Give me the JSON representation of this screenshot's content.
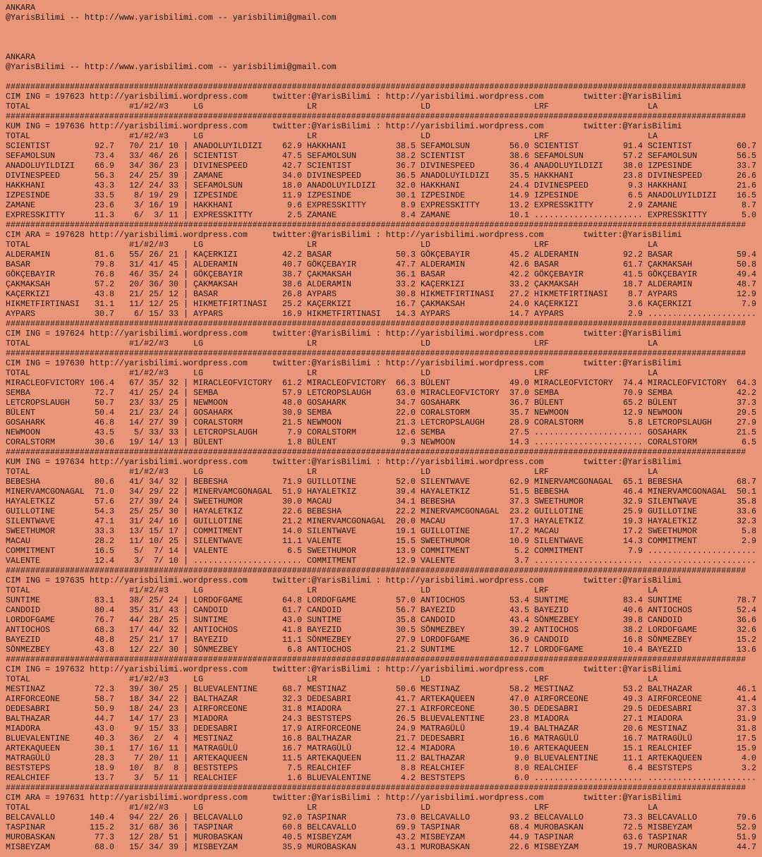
{
  "intro": [
    {
      "city": "ANKARA",
      "contact": "@YarisBilimi -- http://www.yarisbilimi.com -- yarisbilimi@gmail.com"
    },
    {
      "city": "ANKARA",
      "contact": "@YarisBilimi -- http://www.yarisbilimi.com -- yarisbilimi@gmail.com"
    }
  ],
  "separator": "######################################################################################################################################################",
  "tagline": "http://yarisbilimi.wordpress.com     twitter:@YarisBilimi : http://yarisbilimi.wordpress.com        twitter:@YarisBilimi",
  "columns": {
    "total": "TOTAL",
    "ranks": "#1/#2/#3",
    "lg": "LG",
    "lr": "LR",
    "ld": "LD",
    "lrf": "LRF",
    "la": "LA"
  },
  "sections": [
    {
      "title": "CIM ING = 197623",
      "rows": []
    },
    {
      "title": "KUM ING = 197636",
      "rows": [
        [
          "SCIENTIST",
          "92.7",
          "70/ 21/ 10",
          "ANADOLUYILDIZI",
          "62.9",
          "HAKKHANI",
          "38.5",
          "SEFAMOLSUN",
          "56.0",
          "SCIENTIST",
          "91.4",
          "SCIENTIST",
          "60.7"
        ],
        [
          "SEFAMOLSUN",
          "73.4",
          "33/ 46/ 26",
          "SCIENTIST",
          "47.5",
          "SEFAMOLSUN",
          "38.2",
          "SCIENTIST",
          "38.6",
          "SEFAMOLSUN",
          "57.2",
          "SEFAMOLSUN",
          "56.5"
        ],
        [
          "ANADOLUYILDIZI",
          "66.9",
          "34/ 36/ 23",
          "DIVINESPEED",
          "42.7",
          "SCIENTIST",
          "36.7",
          "DIVINESPEED",
          "36.4",
          "ANADOLUYILDIZI",
          "38.0",
          "IZPESINDE",
          "33.7"
        ],
        [
          "DIVINESPEED",
          "56.3",
          "24/ 25/ 39",
          "ZAMANE",
          "34.0",
          "DIVINESPEED",
          "36.5",
          "ANADOLUYILDIZI",
          "35.5",
          "HAKKHANI",
          "23.8",
          "DIVINESPEED",
          "26.6"
        ],
        [
          "HAKKHANI",
          "43.3",
          "12/ 24/ 33",
          "SEFAMOLSUN",
          "18.0",
          "ANADOLUYILDIZI",
          "32.0",
          "HAKKHANI",
          "24.4",
          "DIVINESPEED",
          "9.3",
          "HAKKHANI",
          "21.6"
        ],
        [
          "IZPESINDE",
          "33.5",
          "8/ 19/ 29",
          "IZPESINDE",
          "11.9",
          "IZPESINDE",
          "30.1",
          "IZPESINDE",
          "14.9",
          "IZPESINDE",
          "6.5",
          "ANADOLUYILDIZI",
          "16.5"
        ],
        [
          "ZAMANE",
          "23.6",
          "3/ 16/ 19",
          "HAKKHANI",
          "9.6",
          "EXPRESSKITTY",
          "8.9",
          "EXPRESSKITTY",
          "13.2",
          "EXPRESSKITTY",
          "2.9",
          "ZAMANE",
          "8.7"
        ],
        [
          "EXPRESSKITTY",
          "11.3",
          "6/  3/ 11",
          "EXPRESSKITTY",
          "2.5",
          "ZAMANE",
          "8.4",
          "ZAMANE",
          "10.1",
          "......................",
          "",
          "EXPRESSKITTY",
          "5.0"
        ]
      ]
    },
    {
      "title": "CIM ARA = 197628",
      "rows": [
        [
          "ALDERAMIN",
          "81.6",
          "55/ 26/ 21",
          "KAÇERKIZI",
          "42.2",
          "BASAR",
          "50.3",
          "GÖKÇEBAYIR",
          "45.2",
          "ALDERAMIN",
          "92.2",
          "BASAR",
          "59.4"
        ],
        [
          "BASAR",
          "79.8",
          "31/ 41/ 45",
          "ALDERAMIN",
          "40.7",
          "GÖKÇEBAYIR",
          "47.7",
          "ALDERAMIN",
          "42.6",
          "BASAR",
          "61.7",
          "ÇAKMAKSAH",
          "50.8"
        ],
        [
          "GÖKÇEBAYIR",
          "76.8",
          "46/ 35/ 24",
          "GÖKÇEBAYIR",
          "38.7",
          "ÇAKMAKSAH",
          "36.1",
          "BASAR",
          "42.2",
          "GÖKÇEBAYIR",
          "41.5",
          "GÖKÇEBAYIR",
          "49.4"
        ],
        [
          "ÇAKMAKSAH",
          "57.2",
          "20/ 36/ 30",
          "ÇAKMAKSAH",
          "38.6",
          "ALDERAMIN",
          "33.2",
          "KAÇERKIZI",
          "33.2",
          "ÇAKMAKSAH",
          "18.7",
          "ALDERAMIN",
          "48.7"
        ],
        [
          "KAÇERKIZI",
          "43.8",
          "21/ 25/ 12",
          "BASAR",
          "26.8",
          "AYPARS",
          "30.8",
          "HIKMETFIRTINASI",
          "27.2",
          "HIKMETFIRTINASI",
          "8.7",
          "AYPARS",
          "12.9"
        ],
        [
          "HIKMETFIRTINASI",
          "31.1",
          "11/ 12/ 25",
          "HIKMETFIRTINASI",
          "25.2",
          "KAÇERKIZI",
          "16.7",
          "ÇAKMAKSAH",
          "24.0",
          "KAÇERKIZI",
          "3.6",
          "KAÇERKIZI",
          "7.9"
        ],
        [
          "AYPARS",
          "30.7",
          "6/ 15/ 33",
          "AYPARS",
          "16.9",
          "HIKMETFIRTINASI",
          "14.3",
          "AYPARS",
          "14.7",
          "AYPARS",
          "2.9",
          "......................",
          ""
        ]
      ]
    },
    {
      "title": "CIM ING = 197624",
      "rows": []
    },
    {
      "title": "CIM ING = 197630",
      "rows": [
        [
          "MIRACLEOFVICTORY",
          "106.4",
          "67/ 35/ 32",
          "MIRACLEOFVICTORY",
          "61.2",
          "MIRACLEOFVICTORY",
          "66.3",
          "BÜLENT",
          "49.0",
          "MIRACLEOFVICTORY",
          "74.4",
          "MIRACLEOFVICTORY",
          "64.3"
        ],
        [
          "SEMBA",
          "72.7",
          "41/ 25/ 24",
          "SEMBA",
          "57.9",
          "LETCROPSLAUGH",
          "63.0",
          "MIRACLEOFVICTORY",
          "37.0",
          "SEMBA",
          "70.9",
          "SEMBA",
          "42.2"
        ],
        [
          "LETCROPSLAUGH",
          "50.7",
          "23/ 33/ 25",
          "NEWMOON",
          "48.0",
          "GOSAHARK",
          "34.7",
          "GOSAHARK",
          "36.7",
          "BÜLENT",
          "65.2",
          "BÜLENT",
          "37.3"
        ],
        [
          "BÜLENT",
          "50.4",
          "21/ 23/ 24",
          "GOSAHARK",
          "30.9",
          "SEMBA",
          "22.0",
          "CORALSTORM",
          "35.7",
          "NEWMOON",
          "12.9",
          "NEWMOON",
          "29.5"
        ],
        [
          "GOSAHARK",
          "46.8",
          "14/ 27/ 39",
          "CORALSTORM",
          "21.5",
          "NEWMOON",
          "21.3",
          "LETCROPSLAUGH",
          "28.9",
          "CORALSTORM",
          "5.8",
          "LETCROPSLAUGH",
          "27.9"
        ],
        [
          "NEWMOON",
          "43.5",
          "5/ 33/ 33",
          "LETCROPSLAUGH",
          "7.9",
          "CORALSTORM",
          "12.6",
          "SEMBA",
          "27.5",
          "......................",
          "",
          "GOSAHARK",
          "21.5"
        ],
        [
          "CORALSTORM",
          "30.6",
          "19/ 14/ 13",
          "BÜLENT",
          "1.8",
          "BÜLENT",
          "9.3",
          "NEWMOON",
          "14.3",
          "......................",
          "",
          "CORALSTORM",
          "6.5"
        ]
      ]
    },
    {
      "title": "KUM ING = 197634",
      "rows": [
        [
          "BEBESHA",
          "80.6",
          "41/ 34/ 32",
          "BEBESHA",
          "71.9",
          "GUILLOTINE",
          "52.0",
          "SILENTWAVE",
          "62.9",
          "MINERVAMCGONAGAL",
          "65.1",
          "BEBESHA",
          "68.7"
        ],
        [
          "MINERVAMCGONAGAL",
          "71.0",
          "34/ 29/ 22",
          "MINERVAMCGONAGAL",
          "51.9",
          "HAYALETKIZ",
          "39.4",
          "HAYALETKIZ",
          "51.5",
          "BEBESHA",
          "46.4",
          "MINERVAMCGONAGAL",
          "50.1"
        ],
        [
          "HAYALETKIZ",
          "57.6",
          "27/ 39/ 24",
          "SWEETHUMOR",
          "30.0",
          "MACAU",
          "34.1",
          "BEBESHA",
          "37.3",
          "SWEETHUMOR",
          "32.9",
          "SILENTWAVE",
          "35.8"
        ],
        [
          "GUILLOTINE",
          "54.3",
          "25/ 25/ 30",
          "HAYALETKIZ",
          "22.6",
          "BEBESHA",
          "22.2",
          "MINERVAMCGONAGAL",
          "23.2",
          "GUILLOTINE",
          "25.9",
          "GUILLOTINE",
          "33.6"
        ],
        [
          "SILENTWAVE",
          "47.1",
          "31/ 24/ 16",
          "GUILLOTINE",
          "21.2",
          "MINERVAMCGONAGAL",
          "20.0",
          "MACAU",
          "17.3",
          "HAYALETKIZ",
          "19.3",
          "HAYALETKIZ",
          "32.3"
        ],
        [
          "SWEETHUMOR",
          "33.3",
          "13/ 15/ 17",
          "COMMITMENT",
          "14.0",
          "SILENTWAVE",
          "19.1",
          "GUILLOTINE",
          "17.2",
          "MACAU",
          "17.2",
          "SWEETHUMOR",
          "5.8"
        ],
        [
          "MACAU",
          "28.2",
          "11/ 10/ 25",
          "SILENTWAVE",
          "11.1",
          "VALENTE",
          "15.5",
          "SWEETHUMOR",
          "10.9",
          "SILENTWAVE",
          "14.3",
          "COMMITMENT",
          "2.9"
        ],
        [
          "COMMITMENT",
          "16.5",
          "5/  7/ 14",
          "VALENTE",
          "6.5",
          "SWEETHUMOR",
          "13.9",
          "COMMITMENT",
          "5.2",
          "COMMITMENT",
          "7.9",
          "......................",
          ""
        ],
        [
          "VALENTE",
          "12.4",
          "3/  7/ 10",
          "......................",
          "",
          "COMMITMENT",
          "12.9",
          "VALENTE",
          "3.7",
          "......................",
          "",
          "......................",
          ""
        ]
      ]
    },
    {
      "title": "CIM ING = 197635",
      "rows": [
        [
          "SUNTIME",
          "83.1",
          "38/ 25/ 24",
          "LORDOFGAME",
          "64.8",
          "LORDOFGAME",
          "57.0",
          "ANTIOCHOS",
          "53.4",
          "SUNTIME",
          "83.4",
          "SUNTIME",
          "78.7"
        ],
        [
          "CANDOID",
          "80.4",
          "35/ 31/ 43",
          "CANDOID",
          "61.7",
          "CANDOID",
          "56.7",
          "BAYEZID",
          "43.5",
          "BAYEZID",
          "40.6",
          "ANTIOCHOS",
          "52.4"
        ],
        [
          "LORDOFGAME",
          "76.7",
          "44/ 28/ 25",
          "SUNTIME",
          "43.0",
          "SUNTIME",
          "35.8",
          "CANDOID",
          "43.4",
          "SÖNMEZBEY",
          "39.8",
          "CANDOID",
          "36.6"
        ],
        [
          "ANTIOCHOS",
          "68.3",
          "17/ 44/ 32",
          "ANTIOCHOS",
          "41.8",
          "BAYEZID",
          "30.5",
          "SÖNMEZBEY",
          "39.2",
          "ANTIOCHOS",
          "38.2",
          "LORDOFGAME",
          "32.6"
        ],
        [
          "BAYEZID",
          "48.8",
          "25/ 21/ 17",
          "BAYEZID",
          "11.1",
          "SÖNMEZBEY",
          "27.9",
          "LORDOFGAME",
          "36.9",
          "CANDOID",
          "16.8",
          "SÖNMEZBEY",
          "15.2"
        ],
        [
          "SÖNMEZBEY",
          "43.8",
          "12/ 22/ 30",
          "SÖNMEZBEY",
          "6.8",
          "ANTIOCHOS",
          "21.2",
          "SUNTIME",
          "12.7",
          "LORDOFGAME",
          "10.4",
          "BAYEZID",
          "13.6"
        ]
      ]
    },
    {
      "title": "CIM ING = 197632",
      "rows": [
        [
          "MESTINAZ",
          "72.3",
          "39/ 30/ 25",
          "BLUEVALENTINE",
          "68.7",
          "MESTINAZ",
          "50.6",
          "MESTINAZ",
          "58.2",
          "MESTINAZ",
          "53.2",
          "BALTHAZAR",
          "46.1"
        ],
        [
          "AIRFORCEONE",
          "58.7",
          "18/ 34/ 22",
          "BALTHAZAR",
          "32.3",
          "DEDESABRI",
          "41.7",
          "ARTEKAQUEEN",
          "47.0",
          "AIRFORCEONE",
          "49.3",
          "AIRFORCEONE",
          "41.4"
        ],
        [
          "DEDESABRI",
          "50.9",
          "18/ 24/ 23",
          "AIRFORCEONE",
          "31.8",
          "MIADORA",
          "27.1",
          "AIRFORCEONE",
          "30.5",
          "DEDESABRI",
          "29.5",
          "DEDESABRI",
          "37.3"
        ],
        [
          "BALTHAZAR",
          "44.7",
          "14/ 17/ 23",
          "MIADORA",
          "24.3",
          "BESTSTEPS",
          "26.5",
          "BLUEVALENTINE",
          "23.8",
          "MIADORA",
          "27.1",
          "MIADORA",
          "31.9"
        ],
        [
          "MIADORA",
          "43.0",
          "9/ 15/ 33",
          "DEDESABRI",
          "17.9",
          "AIRFORCEONE",
          "24.9",
          "MATRAGÜLÜ",
          "19.4",
          "BALTHAZAR",
          "20.6",
          "MESTINAZ",
          "31.8"
        ],
        [
          "BLUEVALENTINE",
          "40.3",
          "36/  2/  4",
          "MESTINAZ",
          "16.8",
          "BALTHAZAR",
          "21.7",
          "DEDESABRI",
          "16.6",
          "MATRAGÜLÜ",
          "16.7",
          "MATRAGÜLÜ",
          "17.5"
        ],
        [
          "ARTEKAQUEEN",
          "30.1",
          "17/ 16/ 11",
          "MATRAGÜLÜ",
          "16.7",
          "MATRAGÜLÜ",
          "12.4",
          "MIADORA",
          "10.6",
          "ARTEKAQUEEN",
          "15.1",
          "REALCHIEF",
          "15.9"
        ],
        [
          "MATRAGÜLÜ",
          "28.3",
          "7/ 20/ 11",
          "ARTEKAQUEEN",
          "11.5",
          "ARTEKAQUEEN",
          "11.2",
          "BALTHAZAR",
          "9.0",
          "BLUEVALENTINE",
          "11.1",
          "ARTEKAQUEEN",
          "4.0"
        ],
        [
          "BESTSTEPS",
          "18.9",
          "10/  8/  8",
          "BESTSTEPS",
          "7.5",
          "REALCHIEF",
          "8.8",
          "REALCHIEF",
          "8.0",
          "REALCHIEF",
          "6.4",
          "BESTSTEPS",
          "3.2"
        ],
        [
          "REALCHIEF",
          "13.7",
          "3/  5/ 11",
          "REALCHIEF",
          "1.6",
          "BLUEVALENTINE",
          "4.2",
          "BESTSTEPS",
          "6.0",
          "......................",
          "",
          "......................",
          ""
        ]
      ]
    },
    {
      "title": "CIM ARA = 197631",
      "rows": [
        [
          "BELCAVALLO",
          "140.4",
          "94/ 22/ 26",
          "BELCAVALLO",
          "92.0",
          "TASPINAR",
          "73.0",
          "BELCAVALLO",
          "93.2",
          "BELCAVALLO",
          "73.3",
          "BELCAVALLO",
          "79.6"
        ],
        [
          "TASPINAR",
          "115.2",
          "31/ 68/ 36",
          "TASPINAR",
          "60.8",
          "BELCAVALLO",
          "69.9",
          "TASPINAR",
          "68.4",
          "MUROBASKAN",
          "72.5",
          "MISBEYZAM",
          "52.9"
        ],
        [
          "MUROBASKAN",
          "77.3",
          "12/ 28/ 51",
          "MUROBASKAN",
          "40.5",
          "MISBEYZAM",
          "43.2",
          "MISBEYZAM",
          "44.9",
          "TASPINAR",
          "63.6",
          "TASPINAR",
          "51.9"
        ],
        [
          "MISBEYZAM",
          "68.0",
          "15/ 34/ 39",
          "MISBEYZAM",
          "35.9",
          "MUROBASKAN",
          "43.1",
          "MUROBASKAN",
          "22.6",
          "MISBEYZAM",
          "19.7",
          "MUROBASKAN",
          "44.7"
        ]
      ]
    }
  ]
}
